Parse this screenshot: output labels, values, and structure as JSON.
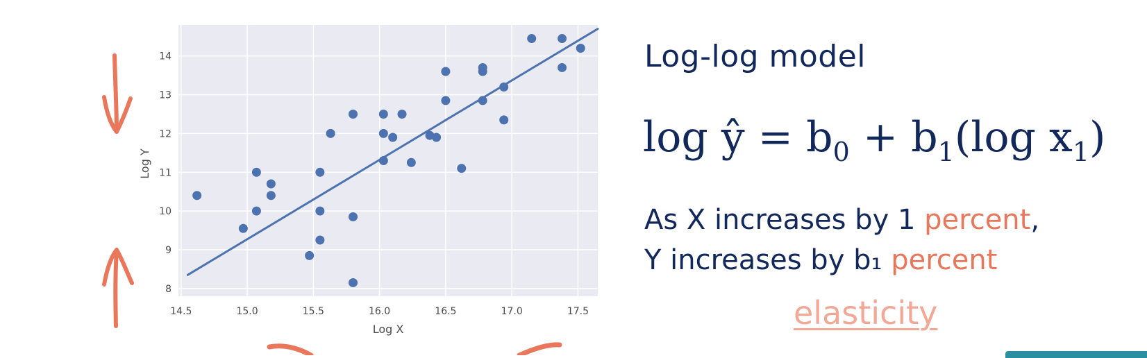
{
  "colors": {
    "navy": "#12275a",
    "accent": "#e8775c",
    "accent_light": "#f1a896",
    "plot_background": "#eaeaf2",
    "series": "#4c72b0",
    "teal": "#2a8fa0"
  },
  "slide": {
    "heading": "Log-log model",
    "formula": {
      "lhs": "log ŷ",
      "equals": "=",
      "b": "b",
      "sub0": "0",
      "plus": "+",
      "sub1": "1",
      "rhs_open": "(log x",
      "rhs_close": ")"
    },
    "statement": {
      "line1_prefix": "As X increases by 1",
      "line1_accent": "percent",
      "line1_suffix": ",",
      "line2_prefix": "Y increases by b₁",
      "line2_accent": "percent"
    },
    "elasticity": "elasticity"
  },
  "annotations": {
    "arrow_color": "#e8775c",
    "arrows": [
      "arrow-down-icon",
      "arrow-up-icon",
      "arc-stroke-icon",
      "arc-stroke-icon"
    ]
  },
  "chart_data": {
    "type": "scatter",
    "xlabel": "Log X",
    "ylabel": "Log Y",
    "xlim": [
      14.48,
      17.65
    ],
    "ylim": [
      7.8,
      14.8
    ],
    "xticks": [
      "14.5",
      "15.0",
      "15.5",
      "16.0",
      "16.5",
      "17.0",
      "17.5"
    ],
    "yticks": [
      "8",
      "9",
      "10",
      "11",
      "12",
      "13",
      "14"
    ],
    "grid": true,
    "points": [
      {
        "x": 14.62,
        "y": 10.4
      },
      {
        "x": 14.97,
        "y": 9.55
      },
      {
        "x": 15.07,
        "y": 11.0
      },
      {
        "x": 15.07,
        "y": 10.0
      },
      {
        "x": 15.18,
        "y": 10.7
      },
      {
        "x": 15.18,
        "y": 10.4
      },
      {
        "x": 15.47,
        "y": 8.85
      },
      {
        "x": 15.55,
        "y": 11.0
      },
      {
        "x": 15.55,
        "y": 10.0
      },
      {
        "x": 15.55,
        "y": 9.25
      },
      {
        "x": 15.63,
        "y": 12.0
      },
      {
        "x": 15.8,
        "y": 12.5
      },
      {
        "x": 15.8,
        "y": 9.85
      },
      {
        "x": 15.8,
        "y": 8.15
      },
      {
        "x": 16.03,
        "y": 12.5
      },
      {
        "x": 16.03,
        "y": 12.0
      },
      {
        "x": 16.03,
        "y": 11.3
      },
      {
        "x": 16.1,
        "y": 11.9
      },
      {
        "x": 16.17,
        "y": 12.5
      },
      {
        "x": 16.24,
        "y": 11.25
      },
      {
        "x": 16.38,
        "y": 11.95
      },
      {
        "x": 16.43,
        "y": 11.9
      },
      {
        "x": 16.5,
        "y": 13.6
      },
      {
        "x": 16.5,
        "y": 12.85
      },
      {
        "x": 16.62,
        "y": 11.1
      },
      {
        "x": 16.78,
        "y": 13.7
      },
      {
        "x": 16.78,
        "y": 13.6
      },
      {
        "x": 16.78,
        "y": 12.85
      },
      {
        "x": 16.94,
        "y": 13.2
      },
      {
        "x": 16.94,
        "y": 12.35
      },
      {
        "x": 17.15,
        "y": 14.45
      },
      {
        "x": 17.38,
        "y": 14.45
      },
      {
        "x": 17.38,
        "y": 13.7
      },
      {
        "x": 17.52,
        "y": 14.2
      }
    ],
    "fit_line": {
      "x": [
        14.55,
        17.65
      ],
      "y": [
        8.35,
        14.7
      ]
    }
  }
}
